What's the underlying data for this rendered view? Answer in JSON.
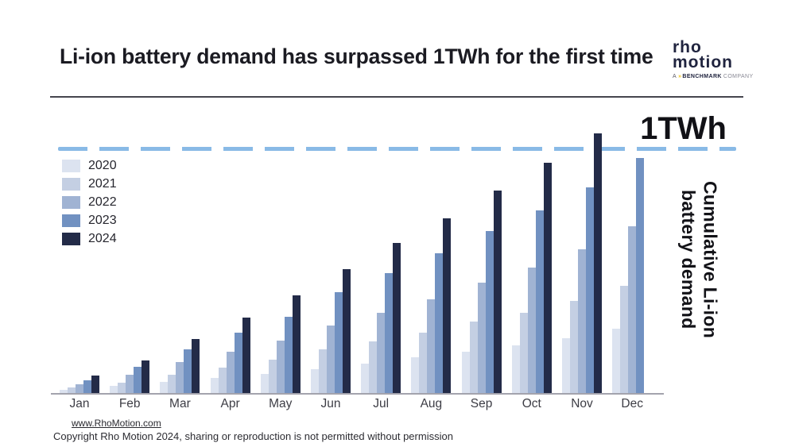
{
  "header": {
    "title": "Li-ion battery demand has surpassed 1TWh for the first time",
    "logo": {
      "line1": "rho",
      "line2": "motion",
      "tagline_prefix": "A",
      "tagline_icon": "»",
      "tagline_brand": "BENCHMARK",
      "tagline_suffix": "COMPANY",
      "accent_color": "#f0c419",
      "text_color": "#20243f"
    }
  },
  "chart_data": {
    "type": "bar",
    "title": "Li-ion battery demand has surpassed 1TWh for the first time",
    "unit": "TWh",
    "categories": [
      "Jan",
      "Feb",
      "Mar",
      "Apr",
      "May",
      "Jun",
      "Jul",
      "Aug",
      "Sep",
      "Oct",
      "Nov",
      "Dec"
    ],
    "series": [
      {
        "name": "2020",
        "color": "#dce3f0",
        "values": [
          0.016,
          0.032,
          0.048,
          0.064,
          0.08,
          0.102,
          0.123,
          0.148,
          0.173,
          0.198,
          0.227,
          0.267
        ]
      },
      {
        "name": "2021",
        "color": "#c4cfe3",
        "values": [
          0.025,
          0.046,
          0.077,
          0.107,
          0.141,
          0.182,
          0.214,
          0.248,
          0.294,
          0.331,
          0.38,
          0.44
        ]
      },
      {
        "name": "2022",
        "color": "#a0b3d3",
        "values": [
          0.04,
          0.077,
          0.131,
          0.171,
          0.216,
          0.278,
          0.331,
          0.385,
          0.455,
          0.517,
          0.591,
          0.684
        ]
      },
      {
        "name": "2023",
        "color": "#7191c1",
        "values": [
          0.054,
          0.109,
          0.182,
          0.251,
          0.315,
          0.414,
          0.492,
          0.575,
          0.663,
          0.749,
          0.843,
          0.962
        ]
      },
      {
        "name": "2024",
        "color": "#232b48",
        "values": [
          0.075,
          0.136,
          0.224,
          0.31,
          0.401,
          0.508,
          0.615,
          0.716,
          0.829,
          0.943,
          1.064,
          null
        ]
      }
    ],
    "threshold": {
      "label": "1TWh",
      "value": 1.0,
      "line_color": "#89bae6"
    },
    "ylabel_lines": [
      "Cumulative Li-ion",
      "battery demand"
    ],
    "ylim": [
      0,
      1.12
    ],
    "grid": false,
    "legend_position": "upper-left"
  },
  "footer": {
    "link": "www.RhoMotion.com",
    "copyright": "Copyright Rho Motion 2024, sharing or reproduction is not permitted without permission"
  }
}
